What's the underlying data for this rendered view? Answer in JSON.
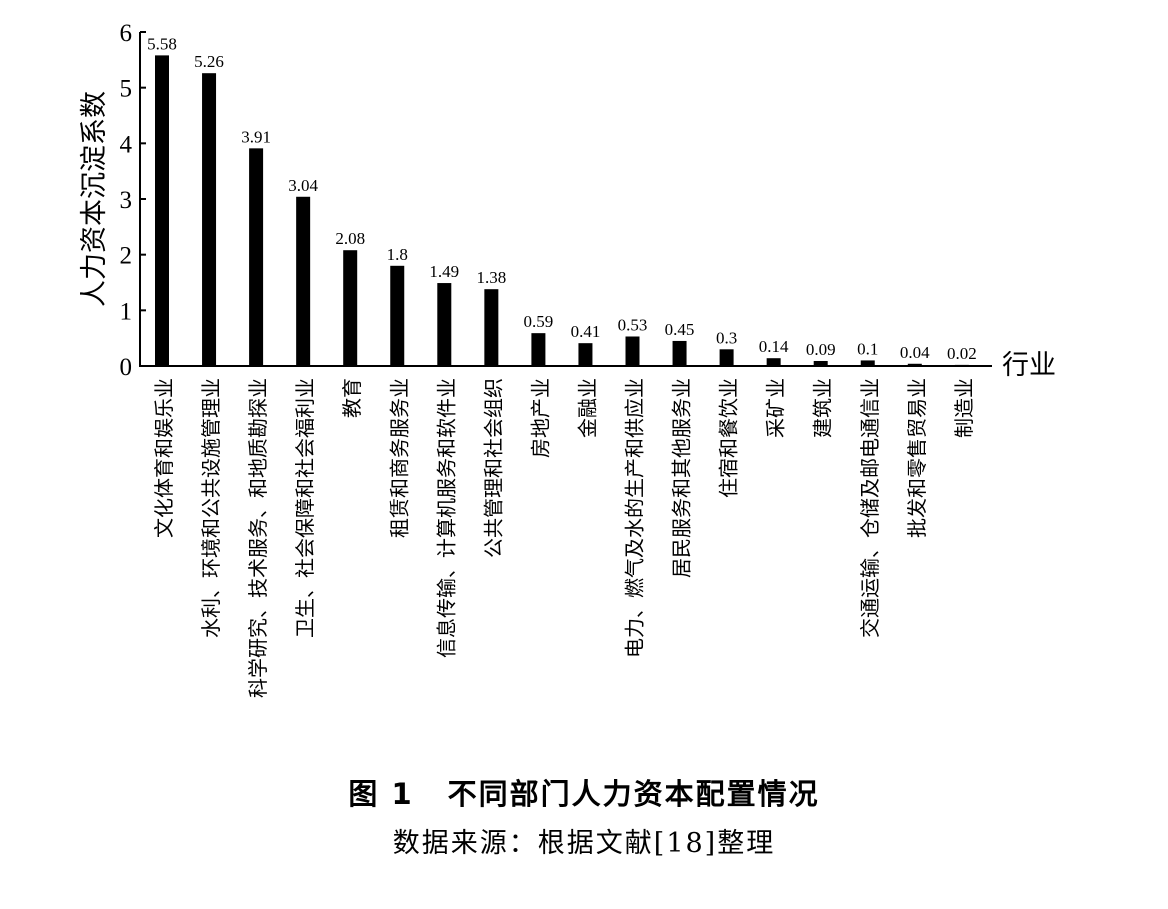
{
  "figure": {
    "label": "图 1",
    "title": "不同部门人力资本配置情况",
    "source": "数据来源：根据文献[18]整理"
  },
  "chart_data": {
    "type": "bar",
    "ylabel": "人力资本沉淀系数",
    "xlabel": "行业",
    "ylim": [
      0,
      6
    ],
    "yticks": [
      "0",
      "1",
      "2",
      "3",
      "4",
      "5",
      "6"
    ],
    "grid": false,
    "categories": [
      "文化体育和娱乐业",
      "水利、环境和公共设施管理业",
      "科学研究、技术服务、和地质勘探业",
      "卫生、社会保障和社会福利业",
      "教育",
      "租赁和商务服务业",
      "信息传输、计算机服务和软件业",
      "公共管理和社会组织",
      "房地产业",
      "金融业",
      "电力、燃气及水的生产和供应业",
      "居民服务和其他服务业",
      "住宿和餐饮业",
      "采矿业",
      "建筑业",
      "交通运输、仓储及邮电通信业",
      "批发和零售贸易业",
      "制造业"
    ],
    "values": [
      5.58,
      5.26,
      3.91,
      3.04,
      2.08,
      1.8,
      1.49,
      1.38,
      0.59,
      0.41,
      0.53,
      0.45,
      0.3,
      0.14,
      0.09,
      0.1,
      0.04,
      0.02
    ],
    "value_labels": [
      "5.58",
      "5.26",
      "3.91",
      "3.04",
      "2.08",
      "1.8",
      "1.49",
      "1.38",
      "0.59",
      "0.41",
      "0.53",
      "0.45",
      "0.3",
      "0.14",
      "0.09",
      "0.1",
      "0.04",
      "0.02"
    ],
    "bar_color": "#000000"
  }
}
